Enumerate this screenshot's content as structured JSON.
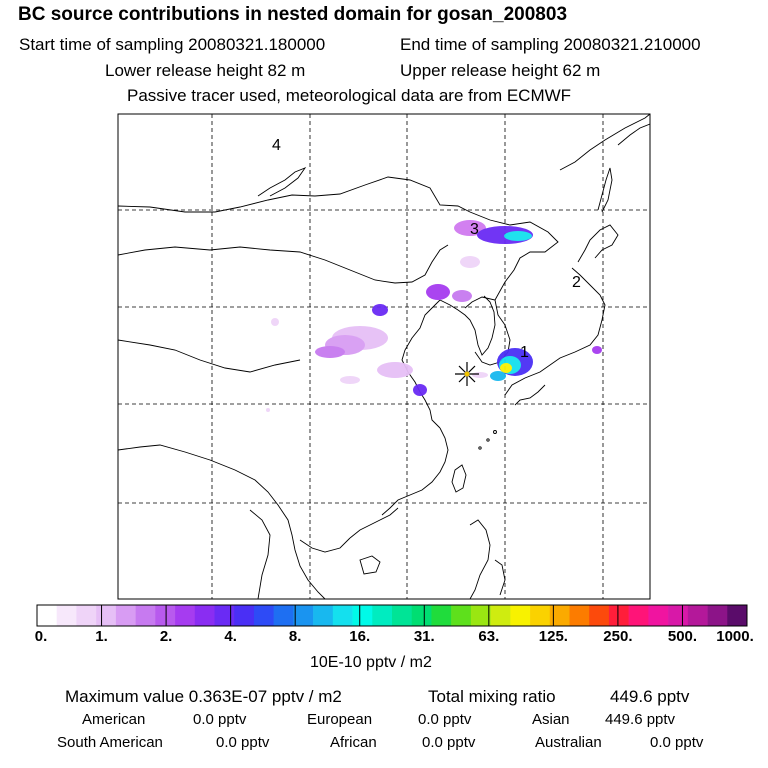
{
  "header": {
    "title": "BC  source contributions in nested domain for gosan_200803",
    "start_label": "Start time of sampling 20080321.180000",
    "end_label": "End time of sampling 20080321.210000",
    "lower_label": "Lower release height   82 m",
    "upper_label": "Upper release height   62 m",
    "note": "Passive tracer used, meteorological data are from ECMWF"
  },
  "map": {
    "region_labels": [
      "4",
      "3",
      "2",
      "1"
    ],
    "receptor_marker": "star-icon"
  },
  "colorbar": {
    "labels": [
      "0.",
      "1.",
      "2.",
      "4.",
      "8.",
      "16.",
      "31.",
      "63.",
      "125.",
      "250.",
      "500.",
      "1000."
    ],
    "units": "10E-10 pptv / m2",
    "colors": [
      "#ffffff",
      "#f7e8fb",
      "#efd4f8",
      "#e6bff6",
      "#d89cf3",
      "#c77af0",
      "#b85aee",
      "#a63cf0",
      "#8a2df2",
      "#6a2bf4",
      "#4a2ff5",
      "#2e4bf6",
      "#1e6ff2",
      "#1a94f0",
      "#18b8ef",
      "#14e0ee",
      "#00fae8",
      "#00ecc0",
      "#00e496",
      "#00de72",
      "#20dc3c",
      "#5ee01c",
      "#9ae612",
      "#cfec10",
      "#f8f200",
      "#fad200",
      "#fbaa00",
      "#fc7c00",
      "#fc4a0c",
      "#ff1e3a",
      "#ff1478",
      "#f014a0",
      "#d818a8",
      "#b4189a",
      "#8c1488",
      "#5a0c6a"
    ]
  },
  "summary": {
    "max_label": "Maximum value  0.363E-07 pptv / m2",
    "total_label": "Total mixing ratio",
    "total_value": "449.6 pptv"
  },
  "contributions": [
    {
      "name": "American",
      "value": "0.0 pptv"
    },
    {
      "name": "European",
      "value": "0.0 pptv"
    },
    {
      "name": "Asian",
      "value": "449.6 pptv"
    },
    {
      "name": "South American",
      "value": "0.0 pptv"
    },
    {
      "name": "African",
      "value": "0.0 pptv"
    },
    {
      "name": "Australian",
      "value": "0.0 pptv"
    }
  ]
}
